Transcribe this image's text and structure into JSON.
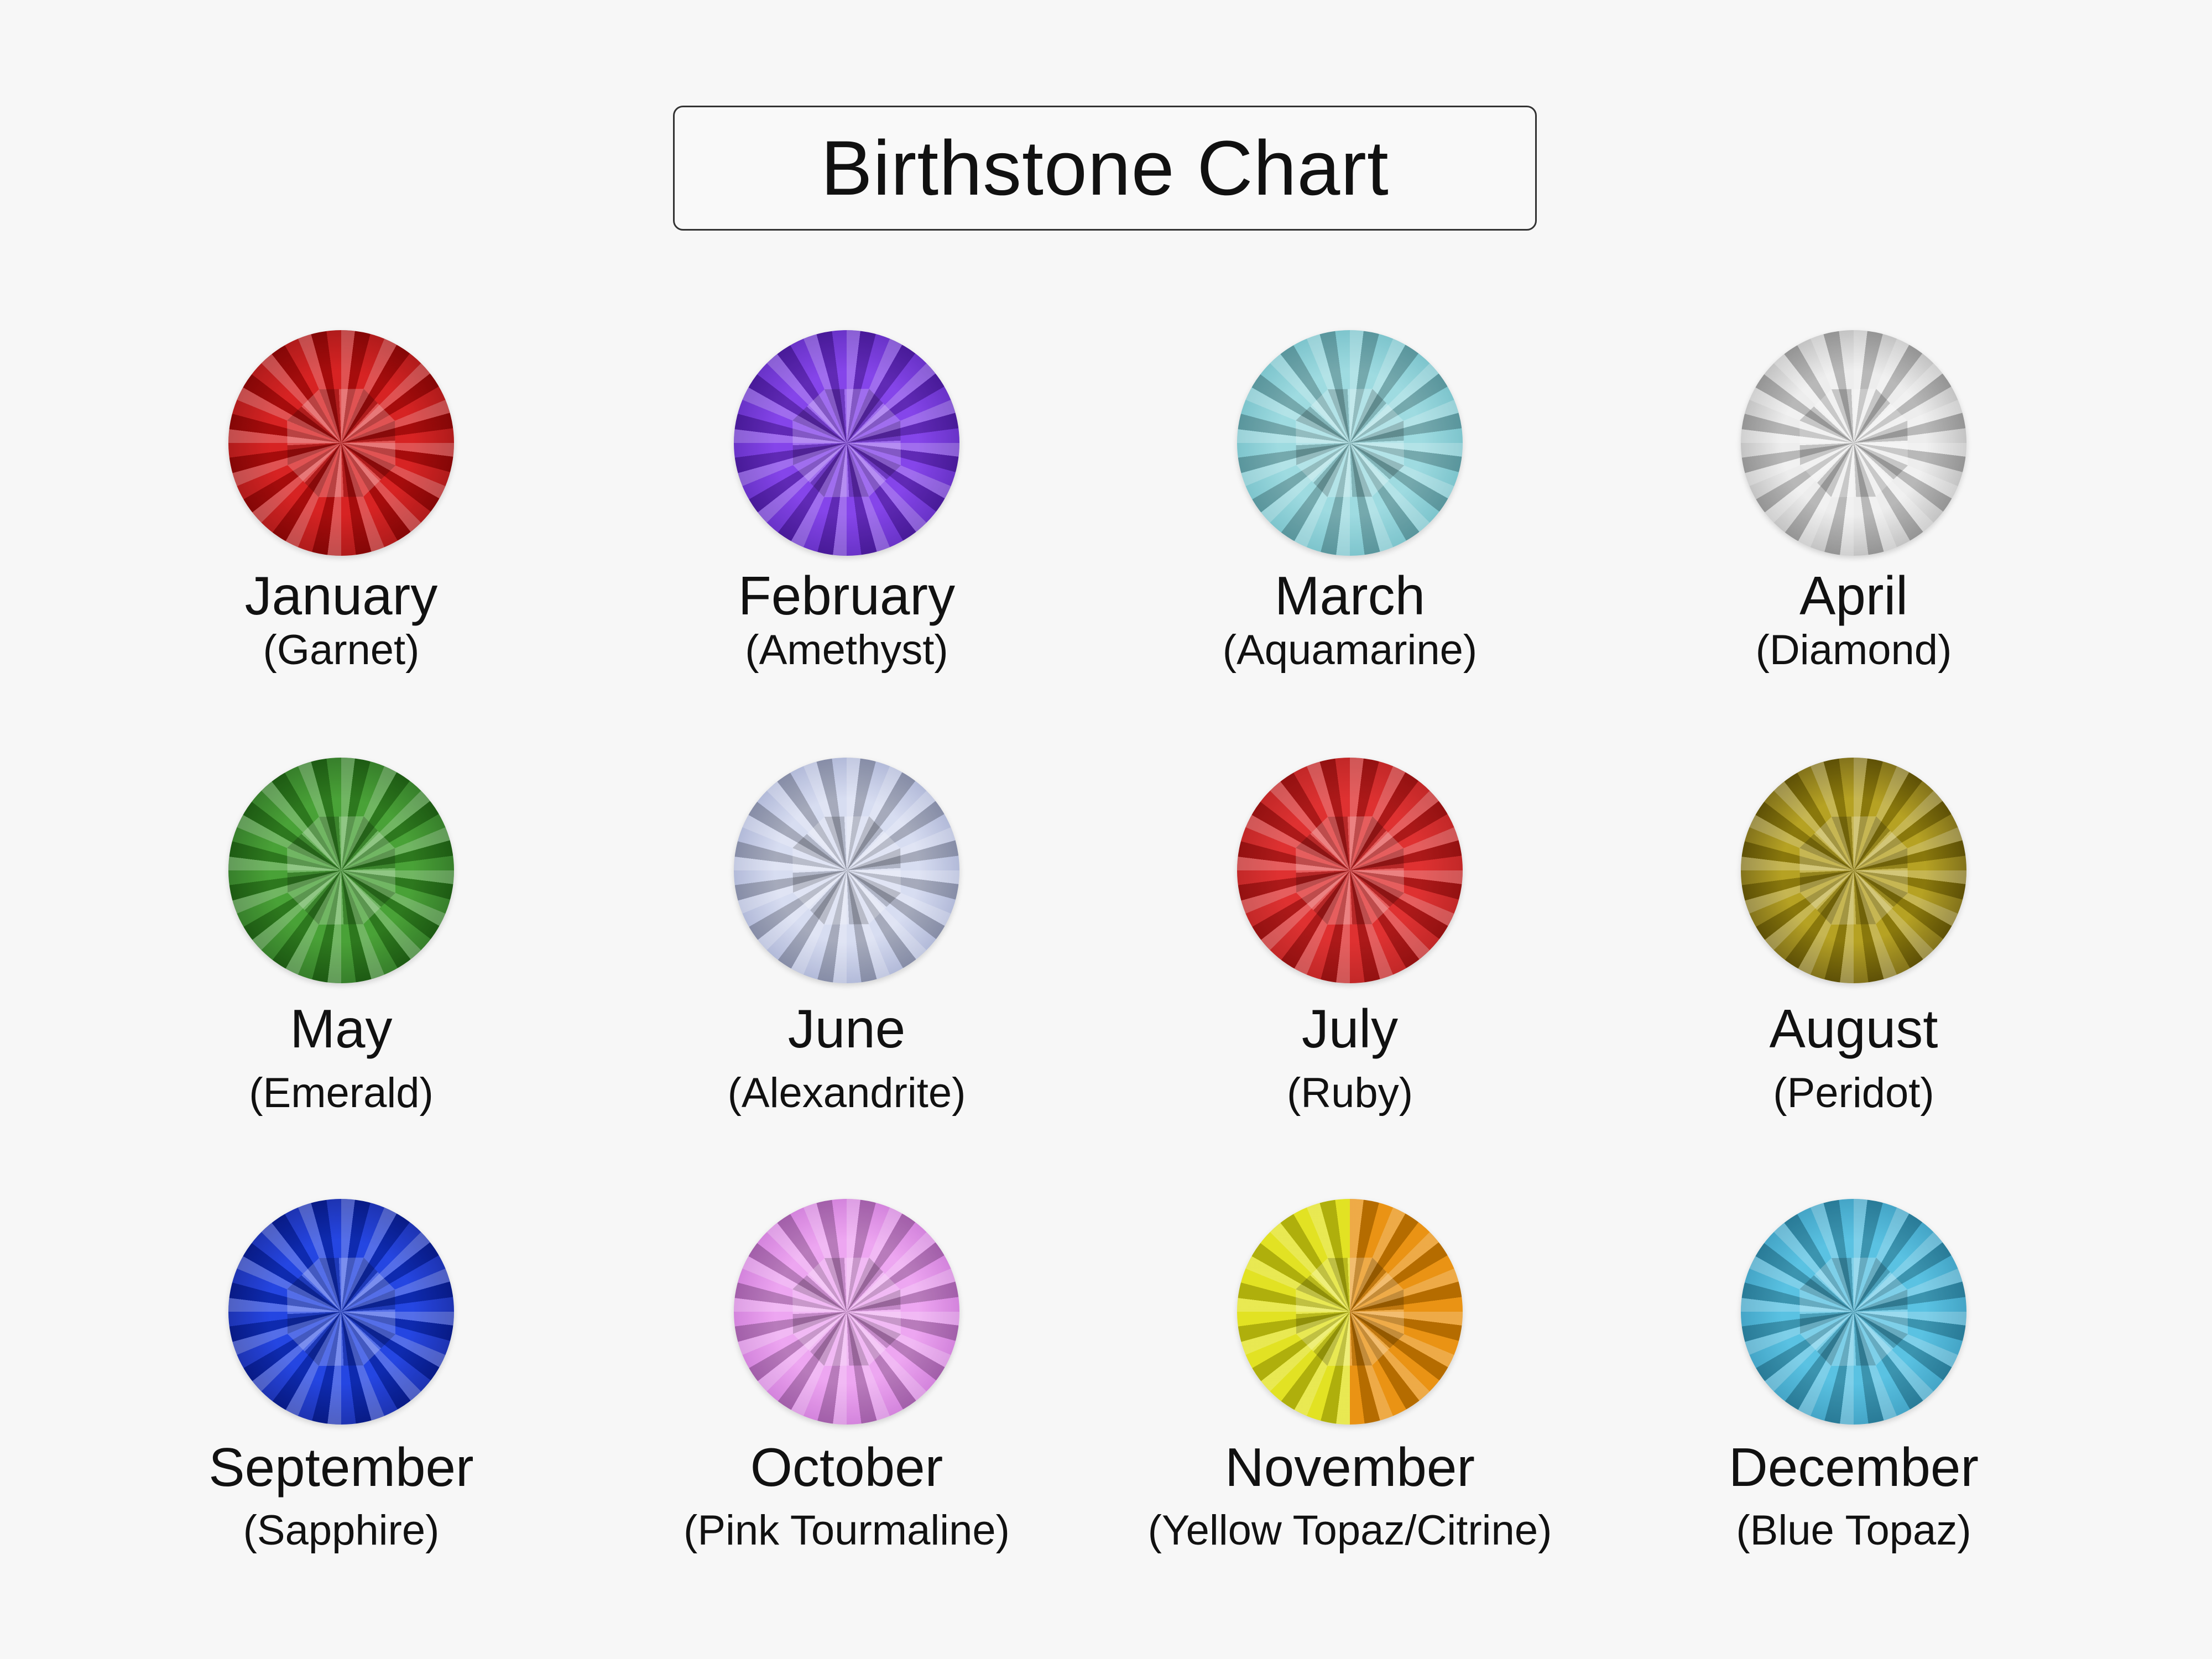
{
  "title": "Birthstone Chart",
  "gems": [
    {
      "month": "January",
      "stone": "(Garnet)",
      "color": "#d41010",
      "color2": "#7a0000"
    },
    {
      "month": "February",
      "stone": "(Amethyst)",
      "color": "#7b35e8",
      "color2": "#3a0c9a"
    },
    {
      "month": "March",
      "stone": "(Aquamarine)",
      "color": "#96d8de",
      "color2": "#4aa4b0"
    },
    {
      "month": "April",
      "stone": "(Diamond)",
      "color": "#ececec",
      "color2": "#8a8a8a"
    },
    {
      "month": "May",
      "stone": "(Emerald)",
      "color": "#3a9a26",
      "color2": "#0f4a0a"
    },
    {
      "month": "June",
      "stone": "(Alexandrite)",
      "color": "#d4daf0",
      "color2": "#7f8ab8"
    },
    {
      "month": "July",
      "stone": "(Ruby)",
      "color": "#dc2020",
      "color2": "#9a0a0a"
    },
    {
      "month": "August",
      "stone": "(Peridot)",
      "color": "#b09a10",
      "color2": "#3a2e00"
    },
    {
      "month": "September",
      "stone": "(Sapphire)",
      "color": "#1236e0",
      "color2": "#020c70"
    },
    {
      "month": "October",
      "stone": "(Pink Tourmaline)",
      "color": "#ec9ef0",
      "color2": "#b050c0"
    },
    {
      "month": "November",
      "stone": "(Yellow Topaz/Citrine)",
      "color": "#e0e010",
      "color2": "#e88a00"
    },
    {
      "month": "December",
      "stone": "(Blue Topaz)",
      "color": "#4cbde0",
      "color2": "#1a7aa0"
    }
  ]
}
